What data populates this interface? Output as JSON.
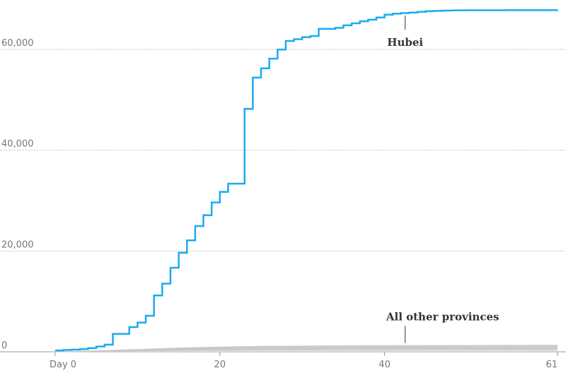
{
  "chart_data": {
    "type": "line",
    "step": true,
    "grid": "horizontal dotted",
    "xlim": [
      0,
      61
    ],
    "ylim": [
      0,
      68000
    ],
    "x_ticks": [
      {
        "value": 0,
        "label": "Day 0"
      },
      {
        "value": 20,
        "label": "20"
      },
      {
        "value": 40,
        "label": "40"
      },
      {
        "value": 61,
        "label": "61"
      }
    ],
    "y_ticks": [
      {
        "value": 0,
        "label": "0"
      },
      {
        "value": 20000,
        "label": "20,000"
      },
      {
        "value": 40000,
        "label": "40,000"
      },
      {
        "value": 60000,
        "label": "60,000"
      }
    ],
    "series": [
      {
        "name": "Hubei",
        "color": "#1aabf0",
        "label_at": {
          "x": 42.5,
          "y": 67300
        },
        "x": [
          0,
          1,
          2,
          3,
          4,
          5,
          6,
          7,
          8,
          9,
          10,
          11,
          12,
          13,
          14,
          15,
          16,
          17,
          18,
          19,
          20,
          21,
          22,
          23,
          24,
          25,
          26,
          27,
          28,
          29,
          30,
          31,
          32,
          33,
          34,
          35,
          36,
          37,
          38,
          39,
          40,
          41,
          42,
          43,
          44,
          45,
          46,
          47,
          48,
          49,
          50,
          55,
          61
        ],
        "values": [
          270,
          375,
          444,
          549,
          729,
          1052,
          1423,
          3554,
          3554,
          4903,
          5806,
          7153,
          11177,
          13522,
          16678,
          19665,
          22112,
          24953,
          27100,
          29631,
          31728,
          33366,
          33366,
          48206,
          54406,
          56249,
          58182,
          59989,
          61682,
          62031,
          62442,
          62662,
          64084,
          64084,
          64287,
          64786,
          65187,
          65596,
          65914,
          66337,
          66907,
          67103,
          67217,
          67332,
          67466,
          67592,
          67666,
          67707,
          67743,
          67760,
          67773,
          67790,
          67800
        ]
      },
      {
        "name": "All other provinces",
        "color": "#dcdcdc",
        "range": true,
        "label_at": {
          "x": 42.5,
          "y": 1200
        },
        "x": [
          0,
          5,
          10,
          15,
          20,
          25,
          30,
          35,
          40,
          45,
          50,
          55,
          61
        ],
        "values": [
          0,
          200,
          500,
          800,
          1000,
          1150,
          1200,
          1260,
          1290,
          1310,
          1330,
          1350,
          1370
        ]
      }
    ]
  }
}
